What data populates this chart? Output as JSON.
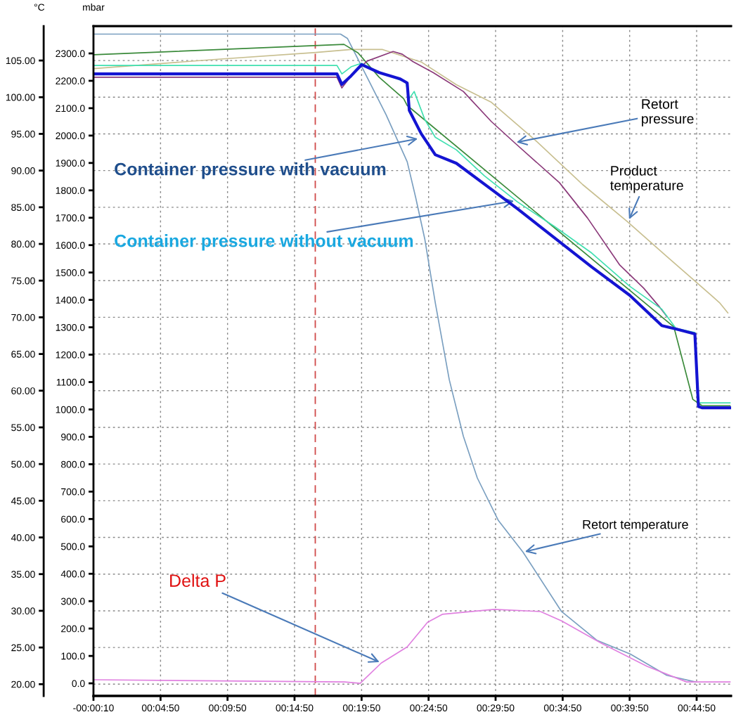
{
  "chart_data": {
    "type": "line",
    "ylabel": "°C",
    "y2label": "mbar",
    "xlim": [
      -0.0028,
      0.79
    ],
    "xticks": [
      {
        "value": -0.0028,
        "label": "-00:00:10"
      },
      {
        "value": 0.0806,
        "label": "00:04:50"
      },
      {
        "value": 0.1639,
        "label": "00:09:50"
      },
      {
        "value": 0.2472,
        "label": "00:14:50"
      },
      {
        "value": 0.3306,
        "label": "00:19:50"
      },
      {
        "value": 0.4139,
        "label": "00:24:50"
      },
      {
        "value": 0.4972,
        "label": "00:29:50"
      },
      {
        "value": 0.5806,
        "label": "00:34:50"
      },
      {
        "value": 0.6639,
        "label": "00:39:50"
      },
      {
        "value": 0.7472,
        "label": "00:44:50"
      }
    ],
    "ylim": [
      18.4,
      109.7
    ],
    "yticks": [
      {
        "value": 20,
        "label": "20.00"
      },
      {
        "value": 25,
        "label": "25.00"
      },
      {
        "value": 30,
        "label": "30.00"
      },
      {
        "value": 35,
        "label": "35.00"
      },
      {
        "value": 40,
        "label": "40.00"
      },
      {
        "value": 45,
        "label": "45.00"
      },
      {
        "value": 50,
        "label": "50.00"
      },
      {
        "value": 55,
        "label": "55.00"
      },
      {
        "value": 60,
        "label": "60.00"
      },
      {
        "value": 65,
        "label": "65.00"
      },
      {
        "value": 70,
        "label": "70.00"
      },
      {
        "value": 75,
        "label": "75.00"
      },
      {
        "value": 80,
        "label": "80.00"
      },
      {
        "value": 85,
        "label": "85.00"
      },
      {
        "value": 90,
        "label": "90.00"
      },
      {
        "value": 95,
        "label": "95.00"
      },
      {
        "value": 100,
        "label": "100.00"
      },
      {
        "value": 105,
        "label": "105.00"
      }
    ],
    "y2lim": [
      -46,
      2400
    ],
    "y2ticks": [
      {
        "value": 0,
        "label": "0.0"
      },
      {
        "value": 100,
        "label": "100.0"
      },
      {
        "value": 200,
        "label": "200.0"
      },
      {
        "value": 300,
        "label": "300.0"
      },
      {
        "value": 400,
        "label": "400.0"
      },
      {
        "value": 500,
        "label": "500.0"
      },
      {
        "value": 600,
        "label": "600.0"
      },
      {
        "value": 700,
        "label": "700.0"
      },
      {
        "value": 800,
        "label": "800.0"
      },
      {
        "value": 900,
        "label": "900.0"
      },
      {
        "value": 1000,
        "label": "1000.0"
      },
      {
        "value": 1100,
        "label": "1100.0"
      },
      {
        "value": 1200,
        "label": "1200.0"
      },
      {
        "value": 1300,
        "label": "1300.0"
      },
      {
        "value": 1400,
        "label": "1400.0"
      },
      {
        "value": 1500,
        "label": "1500.0"
      },
      {
        "value": 1600,
        "label": "1600.0"
      },
      {
        "value": 1700,
        "label": "1700.0"
      },
      {
        "value": 1800,
        "label": "1800.0"
      },
      {
        "value": 1900,
        "label": "1900.0"
      },
      {
        "value": 2000,
        "label": "2000.0"
      },
      {
        "value": 2100,
        "label": "2100.0"
      },
      {
        "value": 2200,
        "label": "2200.0"
      },
      {
        "value": 2300,
        "label": "2300.0"
      }
    ],
    "grid": true,
    "marker": "none",
    "line_style": "solid",
    "ref_lines": [
      {
        "axis": "x",
        "value": 0.273,
        "color": "#d04a4a",
        "line_style": "dashed"
      }
    ],
    "series": [
      {
        "color": "#7a9fc0",
        "x": [
          -0.0028,
          0.3044,
          0.3131,
          0.3288,
          0.3611,
          0.3873,
          0.3977,
          0.4091,
          0.4222,
          0.4396,
          0.4571,
          0.4745,
          0.5007,
          0.5313,
          0.5792,
          0.6229,
          0.6648,
          0.7101,
          0.7459
        ],
        "values": [
          108.6,
          108.6,
          108.0,
          104.6,
          97.6,
          91.2,
          86.4,
          80.7,
          72.0,
          61.5,
          53.8,
          48.1,
          42.3,
          38.0,
          29.9,
          26.0,
          24.1,
          21.2,
          20.3
        ]
      },
      {
        "color": "#c8bf90",
        "x": [
          -0.0028,
          0.143,
          0.2738,
          0.3175,
          0.3567,
          0.4047,
          0.4484,
          0.492,
          0.547,
          0.6054,
          0.6604,
          0.7101,
          0.7424,
          0.7756,
          0.786
        ],
        "values": [
          103.9,
          105.1,
          106.1,
          106.5,
          106.5,
          104.8,
          101.7,
          99.3,
          94.1,
          88.1,
          83.1,
          78.3,
          75.2,
          72.0,
          70.6
        ]
      },
      {
        "axis": "y2",
        "color": "#3a8a3a",
        "x": [
          -0.0028,
          0.3087,
          0.3262,
          0.3524,
          0.3829,
          0.3873,
          0.7189,
          0.7424,
          0.7538,
          0.7887
        ],
        "values": [
          2295,
          2333,
          2302,
          2213,
          2135,
          2110,
          1301,
          1037,
          1014,
          1014
        ]
      },
      {
        "axis": "y2",
        "color": "#8b3a7a",
        "x": [
          -0.0028,
          0.3,
          0.3061,
          0.3175,
          0.3375,
          0.3698,
          0.3812,
          0.3934,
          0.4196,
          0.4571,
          0.492,
          0.5208,
          0.5766,
          0.6115,
          0.6517,
          0.6813,
          0.7014,
          0.7101
        ],
        "values": [
          2213,
          2213,
          2174,
          2218,
          2272,
          2307,
          2297,
          2272,
          2230,
          2161,
          2051,
          1974,
          1828,
          1699,
          1527,
          1443,
          1373,
          1340
        ]
      },
      {
        "axis": "y2",
        "color": "#40e0b0",
        "x": [
          -0.0028,
          0.3,
          0.3061,
          0.3175,
          0.3306,
          0.348,
          0.3698,
          0.3855,
          0.3899,
          0.396,
          0.4091,
          0.4222,
          0.4484,
          0.4833,
          0.5243,
          0.5705,
          0.6168,
          0.6639,
          0.704,
          0.7215,
          0.745,
          0.7494,
          0.7887
        ],
        "values": [
          2256,
          2256,
          2225,
          2251,
          2264,
          2238,
          2213,
          2195,
          2135,
          2161,
          2059,
          1994,
          1948,
          1853,
          1758,
          1668,
          1571,
          1450,
          1366,
          1296,
          1281,
          1024,
          1024
        ]
      },
      {
        "axis": "y2",
        "color": "#1414d2",
        "x": [
          -0.0028,
          0.3,
          0.3061,
          0.3175,
          0.3306,
          0.3524,
          0.3786,
          0.3873,
          0.3899,
          0.4047,
          0.4222,
          0.4484,
          0.5243,
          0.6168,
          0.6639,
          0.704,
          0.7215,
          0.745,
          0.7494,
          0.7538,
          0.7887
        ],
        "values": [
          2225,
          2225,
          2187,
          2218,
          2259,
          2230,
          2207,
          2192,
          2092,
          2007,
          1930,
          1899,
          1733,
          1520,
          1417,
          1306,
          1294,
          1276,
          1011,
          1006,
          1006
        ]
      },
      {
        "axis": "y2",
        "color": "#e080e0",
        "x": [
          -0.0028,
          0.3096,
          0.3288,
          0.355,
          0.3873,
          0.4126,
          0.4309,
          0.4955,
          0.5531,
          0.5792,
          0.629,
          0.6857,
          0.7346,
          0.7887
        ],
        "values": [
          13,
          5,
          0,
          74,
          133,
          223,
          252,
          270,
          262,
          228,
          146,
          62,
          5,
          5
        ]
      }
    ],
    "annotations": [
      {
        "text": "Retort\npressure",
        "x": 0.5208,
        "y": 93.8
      },
      {
        "text": "Product\ntemperature",
        "x": 0.6622,
        "y": 83.1
      },
      {
        "text": "Container pressure with vacuum",
        "x": 0.4029,
        "y": 94.4
      },
      {
        "text": "Container pressure without vacuum",
        "x": 0.5226,
        "y": 85.9
      },
      {
        "text": "Retort temperature",
        "x": 0.5313,
        "y": 38.0
      },
      {
        "text": "Delta P",
        "x": 0.355,
        "y": 22.9
      }
    ]
  }
}
